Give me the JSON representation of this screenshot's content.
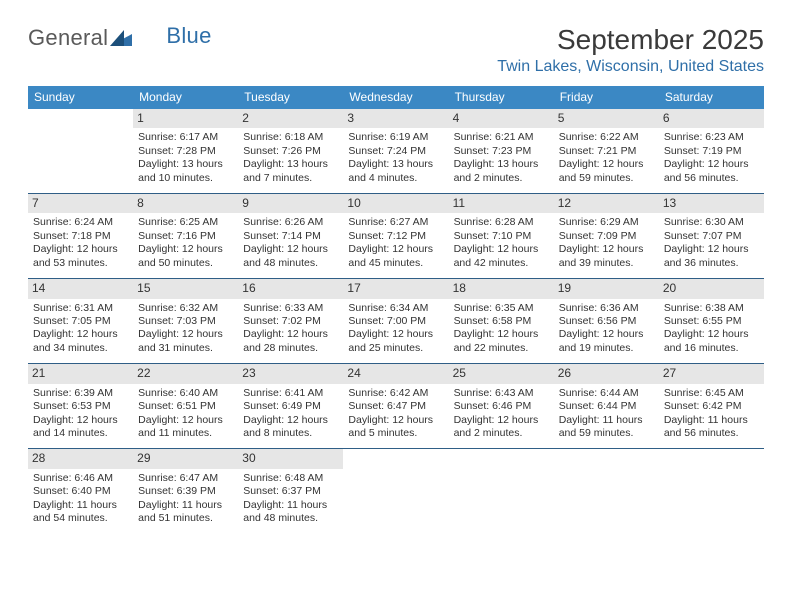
{
  "logo": {
    "part1": "General",
    "part2": "Blue"
  },
  "header": {
    "title": "September 2025",
    "location": "Twin Lakes, Wisconsin, United States"
  },
  "colors": {
    "header_bg": "#3b88c4",
    "header_text": "#ffffff",
    "divider": "#2f5e86",
    "daynum_bg": "#e6e6e6",
    "accent": "#2f6fa8",
    "text": "#333333"
  },
  "daysOfWeek": [
    "Sunday",
    "Monday",
    "Tuesday",
    "Wednesday",
    "Thursday",
    "Friday",
    "Saturday"
  ],
  "weeks": [
    [
      {
        "empty": true
      },
      {
        "n": "1",
        "sr": "Sunrise: 6:17 AM",
        "ss": "Sunset: 7:28 PM",
        "d1": "Daylight: 13 hours",
        "d2": "and 10 minutes."
      },
      {
        "n": "2",
        "sr": "Sunrise: 6:18 AM",
        "ss": "Sunset: 7:26 PM",
        "d1": "Daylight: 13 hours",
        "d2": "and 7 minutes."
      },
      {
        "n": "3",
        "sr": "Sunrise: 6:19 AM",
        "ss": "Sunset: 7:24 PM",
        "d1": "Daylight: 13 hours",
        "d2": "and 4 minutes."
      },
      {
        "n": "4",
        "sr": "Sunrise: 6:21 AM",
        "ss": "Sunset: 7:23 PM",
        "d1": "Daylight: 13 hours",
        "d2": "and 2 minutes."
      },
      {
        "n": "5",
        "sr": "Sunrise: 6:22 AM",
        "ss": "Sunset: 7:21 PM",
        "d1": "Daylight: 12 hours",
        "d2": "and 59 minutes."
      },
      {
        "n": "6",
        "sr": "Sunrise: 6:23 AM",
        "ss": "Sunset: 7:19 PM",
        "d1": "Daylight: 12 hours",
        "d2": "and 56 minutes."
      }
    ],
    [
      {
        "n": "7",
        "sr": "Sunrise: 6:24 AM",
        "ss": "Sunset: 7:18 PM",
        "d1": "Daylight: 12 hours",
        "d2": "and 53 minutes."
      },
      {
        "n": "8",
        "sr": "Sunrise: 6:25 AM",
        "ss": "Sunset: 7:16 PM",
        "d1": "Daylight: 12 hours",
        "d2": "and 50 minutes."
      },
      {
        "n": "9",
        "sr": "Sunrise: 6:26 AM",
        "ss": "Sunset: 7:14 PM",
        "d1": "Daylight: 12 hours",
        "d2": "and 48 minutes."
      },
      {
        "n": "10",
        "sr": "Sunrise: 6:27 AM",
        "ss": "Sunset: 7:12 PM",
        "d1": "Daylight: 12 hours",
        "d2": "and 45 minutes."
      },
      {
        "n": "11",
        "sr": "Sunrise: 6:28 AM",
        "ss": "Sunset: 7:10 PM",
        "d1": "Daylight: 12 hours",
        "d2": "and 42 minutes."
      },
      {
        "n": "12",
        "sr": "Sunrise: 6:29 AM",
        "ss": "Sunset: 7:09 PM",
        "d1": "Daylight: 12 hours",
        "d2": "and 39 minutes."
      },
      {
        "n": "13",
        "sr": "Sunrise: 6:30 AM",
        "ss": "Sunset: 7:07 PM",
        "d1": "Daylight: 12 hours",
        "d2": "and 36 minutes."
      }
    ],
    [
      {
        "n": "14",
        "sr": "Sunrise: 6:31 AM",
        "ss": "Sunset: 7:05 PM",
        "d1": "Daylight: 12 hours",
        "d2": "and 34 minutes."
      },
      {
        "n": "15",
        "sr": "Sunrise: 6:32 AM",
        "ss": "Sunset: 7:03 PM",
        "d1": "Daylight: 12 hours",
        "d2": "and 31 minutes."
      },
      {
        "n": "16",
        "sr": "Sunrise: 6:33 AM",
        "ss": "Sunset: 7:02 PM",
        "d1": "Daylight: 12 hours",
        "d2": "and 28 minutes."
      },
      {
        "n": "17",
        "sr": "Sunrise: 6:34 AM",
        "ss": "Sunset: 7:00 PM",
        "d1": "Daylight: 12 hours",
        "d2": "and 25 minutes."
      },
      {
        "n": "18",
        "sr": "Sunrise: 6:35 AM",
        "ss": "Sunset: 6:58 PM",
        "d1": "Daylight: 12 hours",
        "d2": "and 22 minutes."
      },
      {
        "n": "19",
        "sr": "Sunrise: 6:36 AM",
        "ss": "Sunset: 6:56 PM",
        "d1": "Daylight: 12 hours",
        "d2": "and 19 minutes."
      },
      {
        "n": "20",
        "sr": "Sunrise: 6:38 AM",
        "ss": "Sunset: 6:55 PM",
        "d1": "Daylight: 12 hours",
        "d2": "and 16 minutes."
      }
    ],
    [
      {
        "n": "21",
        "sr": "Sunrise: 6:39 AM",
        "ss": "Sunset: 6:53 PM",
        "d1": "Daylight: 12 hours",
        "d2": "and 14 minutes."
      },
      {
        "n": "22",
        "sr": "Sunrise: 6:40 AM",
        "ss": "Sunset: 6:51 PM",
        "d1": "Daylight: 12 hours",
        "d2": "and 11 minutes."
      },
      {
        "n": "23",
        "sr": "Sunrise: 6:41 AM",
        "ss": "Sunset: 6:49 PM",
        "d1": "Daylight: 12 hours",
        "d2": "and 8 minutes."
      },
      {
        "n": "24",
        "sr": "Sunrise: 6:42 AM",
        "ss": "Sunset: 6:47 PM",
        "d1": "Daylight: 12 hours",
        "d2": "and 5 minutes."
      },
      {
        "n": "25",
        "sr": "Sunrise: 6:43 AM",
        "ss": "Sunset: 6:46 PM",
        "d1": "Daylight: 12 hours",
        "d2": "and 2 minutes."
      },
      {
        "n": "26",
        "sr": "Sunrise: 6:44 AM",
        "ss": "Sunset: 6:44 PM",
        "d1": "Daylight: 11 hours",
        "d2": "and 59 minutes."
      },
      {
        "n": "27",
        "sr": "Sunrise: 6:45 AM",
        "ss": "Sunset: 6:42 PM",
        "d1": "Daylight: 11 hours",
        "d2": "and 56 minutes."
      }
    ],
    [
      {
        "n": "28",
        "sr": "Sunrise: 6:46 AM",
        "ss": "Sunset: 6:40 PM",
        "d1": "Daylight: 11 hours",
        "d2": "and 54 minutes."
      },
      {
        "n": "29",
        "sr": "Sunrise: 6:47 AM",
        "ss": "Sunset: 6:39 PM",
        "d1": "Daylight: 11 hours",
        "d2": "and 51 minutes."
      },
      {
        "n": "30",
        "sr": "Sunrise: 6:48 AM",
        "ss": "Sunset: 6:37 PM",
        "d1": "Daylight: 11 hours",
        "d2": "and 48 minutes."
      },
      {
        "empty": true
      },
      {
        "empty": true
      },
      {
        "empty": true
      },
      {
        "empty": true
      }
    ]
  ]
}
